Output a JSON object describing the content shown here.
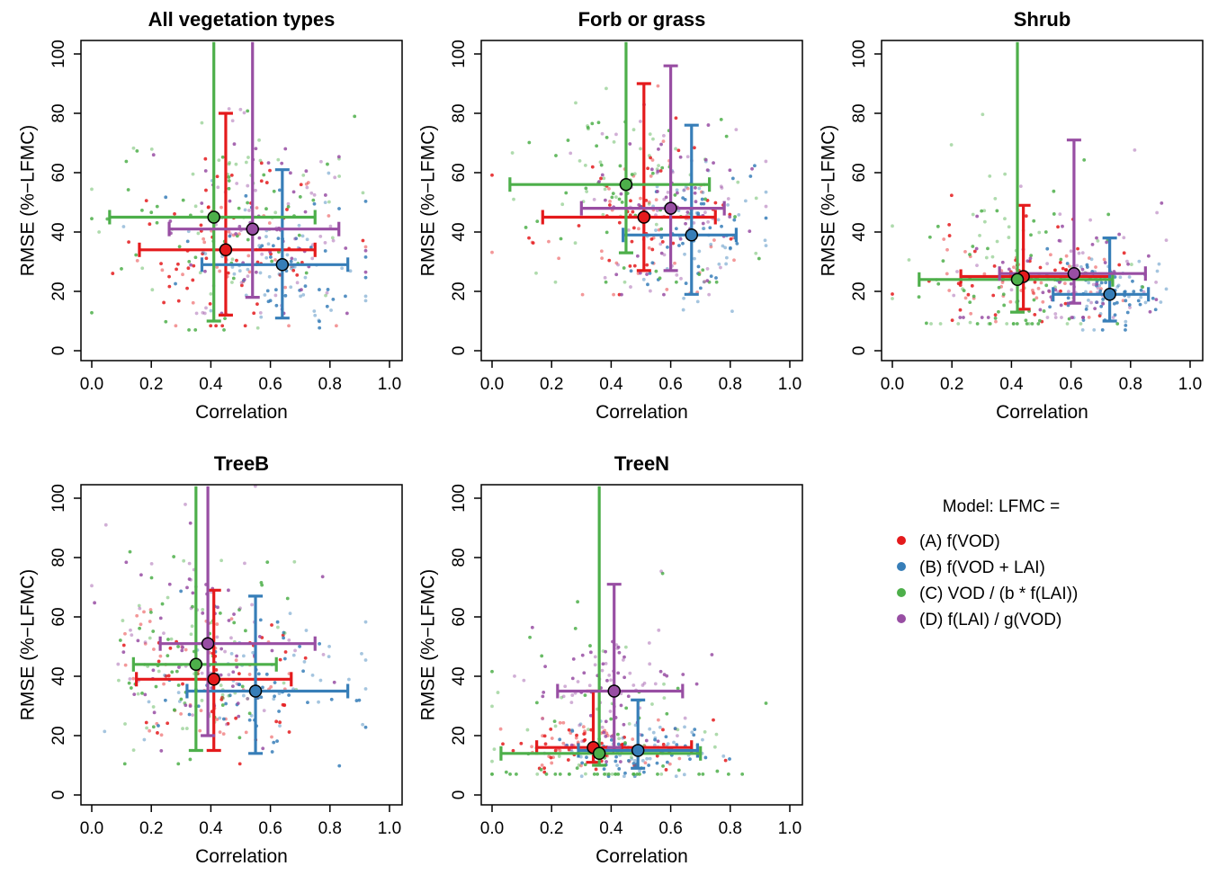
{
  "figure": {
    "legend": {
      "title": "Model: LFMC =",
      "placement": "bottom-right",
      "entries": [
        {
          "key": "A",
          "label": "(A) f(VOD)",
          "color": "#e41a1c"
        },
        {
          "key": "B",
          "label": "(B) f(VOD + LAI)",
          "color": "#377eb8"
        },
        {
          "key": "C",
          "label": "(C) VOD / (b * f(LAI))",
          "color": "#4daf4a"
        },
        {
          "key": "D",
          "label": "(D) f(LAI) / g(VOD)",
          "color": "#984ea3"
        }
      ]
    }
  },
  "chart_data": [
    {
      "type": "scatter",
      "title": "All vegetation types",
      "xlabel": "Correlation",
      "ylabel": "RMSE (%−LFMC)",
      "xlim": [
        0,
        1
      ],
      "ylim": [
        0,
        100
      ],
      "xticks": [
        "0.0",
        "0.2",
        "0.4",
        "0.6",
        "0.8",
        "1.0"
      ],
      "yticks": [
        "0",
        "20",
        "40",
        "60",
        "80",
        "100"
      ],
      "grid": false,
      "summary": [
        {
          "series": "A",
          "x": 0.45,
          "y": 34,
          "x_low": 0.16,
          "x_high": 0.75,
          "y_low": 12,
          "y_high": 80
        },
        {
          "series": "B",
          "x": 0.64,
          "y": 29,
          "x_low": 0.37,
          "x_high": 0.86,
          "y_low": 11,
          "y_high": 61
        },
        {
          "series": "C",
          "x": 0.41,
          "y": 45,
          "x_low": 0.06,
          "x_high": 0.75,
          "y_low": 10,
          "y_high": 104
        },
        {
          "series": "D",
          "x": 0.54,
          "y": 41,
          "x_low": 0.26,
          "x_high": 0.83,
          "y_low": 18,
          "y_high": 104
        }
      ]
    },
    {
      "type": "scatter",
      "title": "Forb or grass",
      "xlabel": "Correlation",
      "ylabel": "RMSE (%−LFMC)",
      "xlim": [
        0,
        1
      ],
      "ylim": [
        0,
        100
      ],
      "xticks": [
        "0.0",
        "0.2",
        "0.4",
        "0.6",
        "0.8",
        "1.0"
      ],
      "yticks": [
        "0",
        "20",
        "40",
        "60",
        "80",
        "100"
      ],
      "grid": false,
      "summary": [
        {
          "series": "A",
          "x": 0.51,
          "y": 45,
          "x_low": 0.17,
          "x_high": 0.75,
          "y_low": 27,
          "y_high": 90
        },
        {
          "series": "B",
          "x": 0.67,
          "y": 39,
          "x_low": 0.44,
          "x_high": 0.82,
          "y_low": 19,
          "y_high": 76
        },
        {
          "series": "C",
          "x": 0.45,
          "y": 56,
          "x_low": 0.06,
          "x_high": 0.73,
          "y_low": 33,
          "y_high": 104
        },
        {
          "series": "D",
          "x": 0.6,
          "y": 48,
          "x_low": 0.3,
          "x_high": 0.78,
          "y_low": 27,
          "y_high": 96
        }
      ]
    },
    {
      "type": "scatter",
      "title": "Shrub",
      "xlabel": "Correlation",
      "ylabel": "RMSE (%−LFMC)",
      "xlim": [
        0,
        1
      ],
      "ylim": [
        0,
        100
      ],
      "xticks": [
        "0.0",
        "0.2",
        "0.4",
        "0.6",
        "0.8",
        "1.0"
      ],
      "yticks": [
        "0",
        "20",
        "40",
        "60",
        "80",
        "100"
      ],
      "grid": false,
      "summary": [
        {
          "series": "A",
          "x": 0.44,
          "y": 25,
          "x_low": 0.23,
          "x_high": 0.73,
          "y_low": 14,
          "y_high": 49
        },
        {
          "series": "B",
          "x": 0.73,
          "y": 19,
          "x_low": 0.54,
          "x_high": 0.86,
          "y_low": 10,
          "y_high": 38
        },
        {
          "series": "C",
          "x": 0.42,
          "y": 24,
          "x_low": 0.09,
          "x_high": 0.74,
          "y_low": 13,
          "y_high": 104
        },
        {
          "series": "D",
          "x": 0.61,
          "y": 26,
          "x_low": 0.36,
          "x_high": 0.85,
          "y_low": 16,
          "y_high": 71
        }
      ]
    },
    {
      "type": "scatter",
      "title": "TreeB",
      "xlabel": "Correlation",
      "ylabel": "RMSE (%−LFMC)",
      "xlim": [
        0,
        1
      ],
      "ylim": [
        0,
        100
      ],
      "xticks": [
        "0.0",
        "0.2",
        "0.4",
        "0.6",
        "0.8",
        "1.0"
      ],
      "yticks": [
        "0",
        "20",
        "40",
        "60",
        "80",
        "100"
      ],
      "grid": false,
      "summary": [
        {
          "series": "A",
          "x": 0.41,
          "y": 39,
          "x_low": 0.15,
          "x_high": 0.67,
          "y_low": 15,
          "y_high": 69
        },
        {
          "series": "B",
          "x": 0.55,
          "y": 35,
          "x_low": 0.32,
          "x_high": 0.86,
          "y_low": 14,
          "y_high": 67
        },
        {
          "series": "C",
          "x": 0.35,
          "y": 44,
          "x_low": 0.14,
          "x_high": 0.62,
          "y_low": 15,
          "y_high": 104
        },
        {
          "series": "D",
          "x": 0.39,
          "y": 51,
          "x_low": 0.23,
          "x_high": 0.75,
          "y_low": 20,
          "y_high": 104
        }
      ]
    },
    {
      "type": "scatter",
      "title": "TreeN",
      "xlabel": "Correlation",
      "ylabel": "RMSE (%−LFMC)",
      "xlim": [
        0,
        1
      ],
      "ylim": [
        0,
        100
      ],
      "xticks": [
        "0.0",
        "0.2",
        "0.4",
        "0.6",
        "0.8",
        "1.0"
      ],
      "yticks": [
        "0",
        "20",
        "40",
        "60",
        "80",
        "100"
      ],
      "grid": false,
      "summary": [
        {
          "series": "A",
          "x": 0.34,
          "y": 16,
          "x_low": 0.15,
          "x_high": 0.67,
          "y_low": 11,
          "y_high": 35
        },
        {
          "series": "B",
          "x": 0.49,
          "y": 15,
          "x_low": 0.29,
          "x_high": 0.69,
          "y_low": 9,
          "y_high": 32
        },
        {
          "series": "C",
          "x": 0.36,
          "y": 14,
          "x_low": 0.03,
          "x_high": 0.7,
          "y_low": 10,
          "y_high": 104
        },
        {
          "series": "D",
          "x": 0.41,
          "y": 35,
          "x_low": 0.22,
          "x_high": 0.64,
          "y_low": 16,
          "y_high": 71
        }
      ]
    }
  ]
}
